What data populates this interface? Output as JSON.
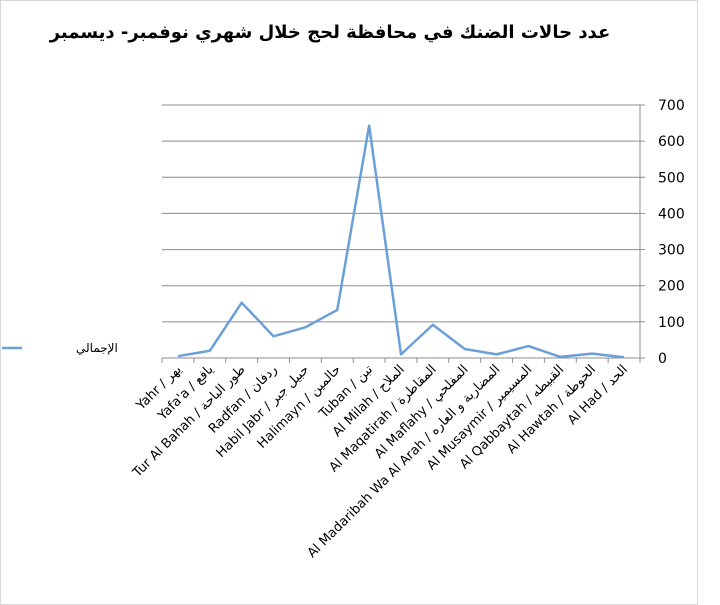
{
  "chart_data": {
    "type": "line",
    "title": "عدد حالات الضنك في محافظة لحج خلال شهري نوفمبر- ديسمبر",
    "categories": [
      "Yahr / يهر",
      "Yafa'a / يافع",
      "Tur Al Bahah / طور الباحة",
      "Radfan / ردفان",
      "Habil Jabr / حبيل جبر",
      "Halimayn / حالمين",
      "Tuban / تبن",
      "Al Milah / الملاح",
      "Al Maqatirah / المقاطرة",
      "Al Maflahy / المفلحي",
      "Al Madaribah Wa Al Arah / المضاربة و العاره",
      "Al Musaymir / المسيمير",
      "Al Qabbaytah / القبيطه",
      "Al Hawtah / الحوطة",
      "Al Had / الحد"
    ],
    "series": [
      {
        "name": "الإجمالي",
        "color": "#6b9fd8",
        "values": [
          5,
          20,
          153,
          60,
          85,
          133,
          643,
          10,
          92,
          25,
          10,
          33,
          3,
          12,
          2
        ]
      }
    ],
    "ylim": [
      0,
      700
    ],
    "yticks": [
      0,
      100,
      200,
      300,
      400,
      500,
      600,
      700
    ],
    "grid": true,
    "y_axis_side": "right",
    "legend": "left"
  }
}
